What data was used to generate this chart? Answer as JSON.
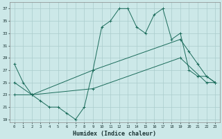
{
  "xlabel": "Humidex (Indice chaleur)",
  "bg_color": "#cce8e8",
  "grid_color": "#aacccc",
  "line_color": "#1a6b5a",
  "xlim": [
    -0.5,
    23.5
  ],
  "ylim": [
    18.5,
    38.0
  ],
  "xtick_vals": [
    0,
    1,
    2,
    3,
    4,
    5,
    6,
    7,
    8,
    9,
    10,
    11,
    12,
    13,
    14,
    15,
    16,
    17,
    18,
    19,
    20,
    21,
    22,
    23
  ],
  "ytick_vals": [
    19,
    21,
    23,
    25,
    27,
    29,
    31,
    33,
    35,
    37
  ],
  "line1_x": [
    0,
    1,
    2,
    3,
    4,
    5,
    6,
    7,
    8,
    9,
    10,
    11,
    12,
    13,
    14,
    15,
    16,
    17,
    18,
    19,
    20,
    21,
    22,
    23
  ],
  "line1_y": [
    28,
    25,
    23,
    22,
    21,
    21,
    20,
    19,
    21,
    27,
    34,
    35,
    37,
    37,
    34,
    33,
    36,
    37,
    32,
    33,
    27,
    26,
    26,
    25
  ],
  "line2_x": [
    0,
    2,
    9,
    19,
    20,
    21,
    22,
    23
  ],
  "line2_y": [
    25,
    23,
    27,
    32,
    30,
    28,
    26,
    25
  ],
  "line3_x": [
    0,
    2,
    9,
    19,
    22,
    23
  ],
  "line3_y": [
    23,
    23,
    24,
    29,
    25,
    25
  ],
  "line1_markers": [
    0,
    1,
    2,
    3,
    4,
    5,
    6,
    7,
    8,
    9,
    10,
    11,
    12,
    13,
    14,
    15,
    16,
    17,
    18,
    19,
    20,
    21,
    22,
    23
  ],
  "line2_markers": [
    0,
    2,
    9,
    19,
    20,
    21,
    22,
    23
  ],
  "line3_markers": [
    0,
    2,
    9,
    19,
    22,
    23
  ]
}
